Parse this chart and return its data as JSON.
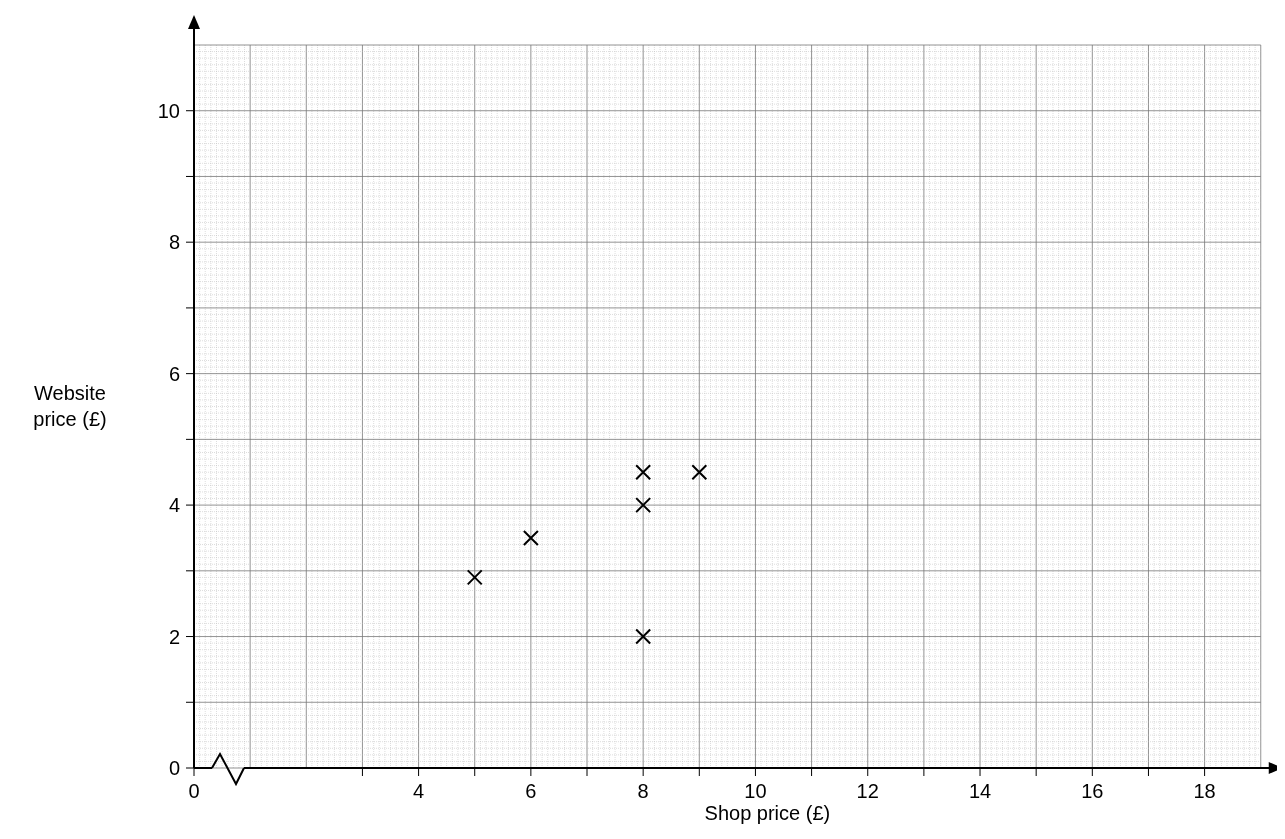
{
  "chart_data": {
    "type": "scatter",
    "xlabel": "Shop price (£)",
    "ylabel": "Website price (£)",
    "x": [
      5,
      6,
      8,
      8,
      8,
      9
    ],
    "values": [
      2.9,
      3.5,
      4.5,
      4,
      2,
      4.5
    ],
    "color": "#000000",
    "marker": "cross",
    "grid": true,
    "xlim": [
      0,
      19
    ],
    "xticks": [
      0,
      {
        "value": 3,
        "label": null
      },
      4,
      {
        "value": 5,
        "label": null
      },
      6,
      {
        "value": 7,
        "label": null
      },
      8,
      {
        "value": 9,
        "label": null
      },
      10,
      {
        "value": 11,
        "label": null
      },
      12,
      {
        "value": 13,
        "label": null
      },
      14,
      {
        "value": 15,
        "label": null
      },
      16,
      {
        "value": 17,
        "label": null
      },
      18
    ],
    "ylim": [
      0,
      11
    ],
    "yticks": [
      0,
      {
        "value": 1,
        "label": null
      },
      2,
      {
        "value": 3,
        "label": null
      },
      4,
      {
        "value": 5,
        "label": null
      },
      6,
      {
        "value": 7,
        "label": null
      },
      8,
      {
        "value": 9,
        "label": null
      },
      10
    ]
  }
}
